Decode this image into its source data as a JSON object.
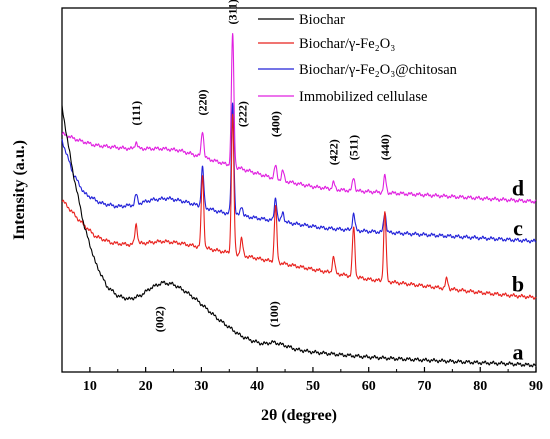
{
  "chart_data": {
    "type": "line",
    "xlabel": "2θ (degree)",
    "ylabel": "Intensity (a.u.)",
    "xlim": [
      5,
      90
    ],
    "x_ticks": [
      10,
      20,
      30,
      40,
      50,
      60,
      70,
      80,
      90
    ],
    "y_ticks_shown": false,
    "grid": false,
    "legend_position": "top-right",
    "series": [
      {
        "name": "Biochar",
        "letter": "a",
        "color": "#000000",
        "points": [
          [
            5,
            0.8
          ],
          [
            7,
            0.6
          ],
          [
            9,
            0.44
          ],
          [
            11,
            0.33
          ],
          [
            13,
            0.26
          ],
          [
            15,
            0.23
          ],
          [
            17,
            0.22
          ],
          [
            19,
            0.23
          ],
          [
            21,
            0.255
          ],
          [
            23,
            0.27
          ],
          [
            25,
            0.265
          ],
          [
            27,
            0.245
          ],
          [
            29,
            0.22
          ],
          [
            31,
            0.19
          ],
          [
            33,
            0.16
          ],
          [
            35,
            0.135
          ],
          [
            37,
            0.11
          ],
          [
            39,
            0.095
          ],
          [
            41,
            0.085
          ],
          [
            43,
            0.09
          ],
          [
            45,
            0.08
          ],
          [
            47,
            0.068
          ],
          [
            50,
            0.06
          ],
          [
            55,
            0.052
          ],
          [
            60,
            0.045
          ],
          [
            65,
            0.04
          ],
          [
            70,
            0.036
          ],
          [
            75,
            0.032
          ],
          [
            80,
            0.028
          ],
          [
            85,
            0.025
          ],
          [
            90,
            0.02
          ]
        ],
        "peaks": []
      },
      {
        "name": "Biochar/γ-Fe₂O₃",
        "letter": "b",
        "color": "#e8201c",
        "points": [
          [
            5,
            0.52
          ],
          [
            8,
            0.46
          ],
          [
            11,
            0.41
          ],
          [
            14,
            0.39
          ],
          [
            17,
            0.385
          ],
          [
            20,
            0.39
          ],
          [
            23,
            0.395
          ],
          [
            26,
            0.39
          ],
          [
            29,
            0.38
          ],
          [
            32,
            0.37
          ],
          [
            35,
            0.36
          ],
          [
            38,
            0.35
          ],
          [
            41,
            0.34
          ],
          [
            44,
            0.33
          ],
          [
            47,
            0.32
          ],
          [
            50,
            0.31
          ],
          [
            55,
            0.295
          ],
          [
            60,
            0.28
          ],
          [
            65,
            0.27
          ],
          [
            70,
            0.26
          ],
          [
            75,
            0.25
          ],
          [
            80,
            0.24
          ],
          [
            85,
            0.232
          ],
          [
            90,
            0.225
          ]
        ],
        "peaks": [
          [
            18.3,
            0.06
          ],
          [
            30.2,
            0.22
          ],
          [
            35.6,
            0.42
          ],
          [
            37.2,
            0.05
          ],
          [
            43.3,
            0.17
          ],
          [
            53.7,
            0.05
          ],
          [
            57.3,
            0.15
          ],
          [
            62.9,
            0.21
          ],
          [
            74,
            0.03
          ]
        ]
      },
      {
        "name": "Biochar/γ-Fe₂O₃@chitosan",
        "letter": "c",
        "color": "#2020d8",
        "points": [
          [
            5,
            0.7
          ],
          [
            7,
            0.6
          ],
          [
            9,
            0.54
          ],
          [
            12,
            0.51
          ],
          [
            15,
            0.5
          ],
          [
            18,
            0.505
          ],
          [
            21,
            0.52
          ],
          [
            24,
            0.525
          ],
          [
            27,
            0.515
          ],
          [
            30,
            0.5
          ],
          [
            33,
            0.485
          ],
          [
            36,
            0.475
          ],
          [
            40,
            0.465
          ],
          [
            44,
            0.455
          ],
          [
            48,
            0.445
          ],
          [
            52,
            0.435
          ],
          [
            56,
            0.43
          ],
          [
            60,
            0.425
          ],
          [
            65,
            0.42
          ],
          [
            70,
            0.415
          ],
          [
            75,
            0.41
          ],
          [
            80,
            0.405
          ],
          [
            85,
            0.4
          ],
          [
            90,
            0.395
          ]
        ],
        "peaks": [
          [
            18.3,
            0.03
          ],
          [
            30.2,
            0.12
          ],
          [
            35.6,
            0.34
          ],
          [
            37.2,
            0.03
          ],
          [
            43.3,
            0.07
          ],
          [
            44.6,
            0.03
          ],
          [
            57.3,
            0.05
          ],
          [
            62.9,
            0.06
          ]
        ]
      },
      {
        "name": "Immobilized cellulase",
        "letter": "d",
        "color": "#e020e0",
        "points": [
          [
            5,
            0.72
          ],
          [
            8,
            0.7
          ],
          [
            11,
            0.685
          ],
          [
            14,
            0.68
          ],
          [
            17,
            0.675
          ],
          [
            20,
            0.675
          ],
          [
            23,
            0.675
          ],
          [
            26,
            0.67
          ],
          [
            29,
            0.655
          ],
          [
            32,
            0.64
          ],
          [
            35,
            0.625
          ],
          [
            38,
            0.61
          ],
          [
            41,
            0.595
          ],
          [
            44,
            0.58
          ],
          [
            47,
            0.57
          ],
          [
            50,
            0.56
          ],
          [
            55,
            0.55
          ],
          [
            60,
            0.545
          ],
          [
            65,
            0.54
          ],
          [
            70,
            0.535
          ],
          [
            75,
            0.53
          ],
          [
            80,
            0.525
          ],
          [
            85,
            0.52
          ],
          [
            90,
            0.515
          ]
        ],
        "peaks": [
          [
            18.3,
            0.02
          ],
          [
            30.2,
            0.08
          ],
          [
            35.6,
            0.4
          ],
          [
            43.3,
            0.04
          ],
          [
            44.6,
            0.03
          ],
          [
            53.7,
            0.02
          ],
          [
            57.3,
            0.04
          ],
          [
            62.9,
            0.05
          ]
        ]
      }
    ],
    "peak_annotations": [
      {
        "text": "(111)",
        "x": 18.3,
        "y": 0.745
      },
      {
        "text": "(220)",
        "x": 30.2,
        "y": 0.775
      },
      {
        "text": "(311)",
        "x": 35.6,
        "y": 1.05
      },
      {
        "text": "(222)",
        "x": 37.4,
        "y": 0.74
      },
      {
        "text": "(400)",
        "x": 43.3,
        "y": 0.71
      },
      {
        "text": "(422)",
        "x": 53.7,
        "y": 0.625
      },
      {
        "text": "(511)",
        "x": 57.3,
        "y": 0.64
      },
      {
        "text": "(440)",
        "x": 62.9,
        "y": 0.64
      },
      {
        "text": "(002)",
        "x": 22.5,
        "y": 0.12
      },
      {
        "text": "(100)",
        "x": 43,
        "y": 0.135
      }
    ]
  }
}
